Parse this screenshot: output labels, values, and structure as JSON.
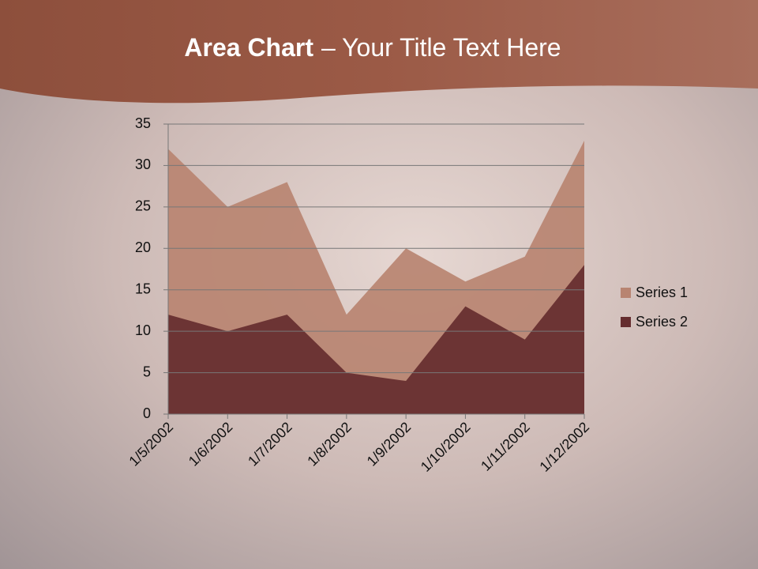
{
  "chart_data": {
    "type": "area",
    "title": {
      "bold": "Area Chart",
      "rest": "– Your Title Text Here"
    },
    "categories": [
      "1/5/2002",
      "1/6/2002",
      "1/7/2002",
      "1/8/2002",
      "1/9/2002",
      "1/10/2002",
      "1/11/2002",
      "1/12/2002"
    ],
    "series": [
      {
        "name": "Series 1",
        "color": "#b88471",
        "values": [
          32,
          25,
          28,
          12,
          20,
          16,
          19,
          33
        ]
      },
      {
        "name": "Series 2",
        "color": "#652d2f",
        "values": [
          12,
          10,
          12,
          5,
          4,
          13,
          9,
          18
        ]
      }
    ],
    "ylim": [
      0,
      35
    ],
    "yticks": [
      0,
      5,
      10,
      15,
      20,
      25,
      30,
      35
    ],
    "grid": true,
    "legend": "right"
  }
}
